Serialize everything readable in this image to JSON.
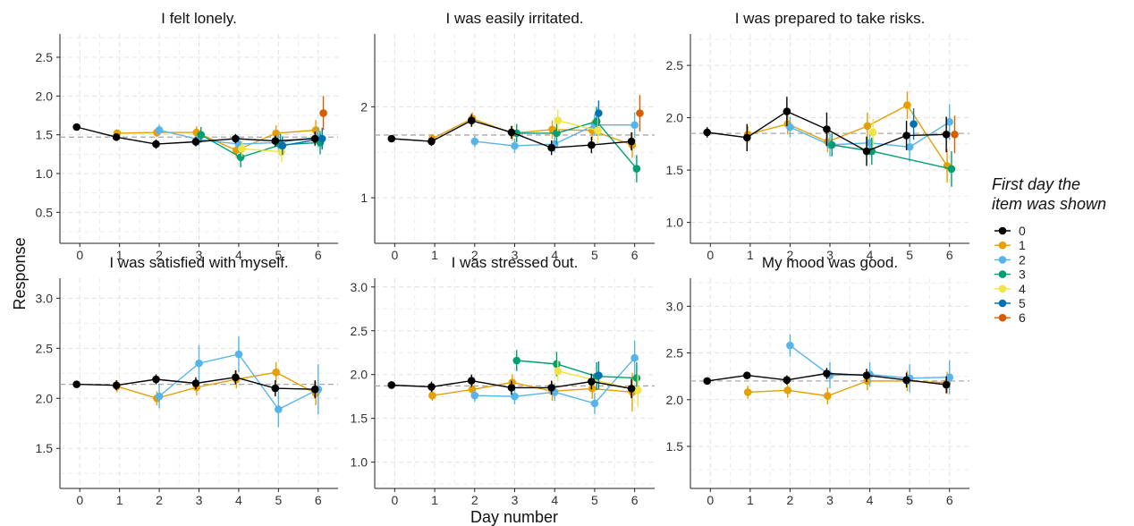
{
  "figure": {
    "ylabel": "Response",
    "xlabel": "Day number",
    "legend_title_line1": "First day the",
    "legend_title_line2": "item was shown"
  },
  "legend": [
    {
      "label": "0",
      "color": "#000000"
    },
    {
      "label": "1",
      "color": "#E69F00"
    },
    {
      "label": "2",
      "color": "#56B4E9"
    },
    {
      "label": "3",
      "color": "#009E73"
    },
    {
      "label": "4",
      "color": "#F0E442"
    },
    {
      "label": "5",
      "color": "#0072B2"
    },
    {
      "label": "6",
      "color": "#D55E00"
    }
  ],
  "chart_data": [
    {
      "type": "line",
      "title": "I felt lonely.",
      "xlabel": "Day number",
      "ylabel": "Response",
      "x_ticks": [
        0,
        1,
        2,
        3,
        4,
        5,
        6
      ],
      "y_ticks": [
        0.5,
        1.0,
        1.5,
        2.0,
        2.5
      ],
      "y_tick_labels": [
        "0.5",
        "1.0",
        "1.5",
        "2.0",
        "2.5"
      ],
      "ylim": [
        0.1,
        2.8
      ],
      "reference_line": 1.47,
      "grid": true,
      "legend_position": "right",
      "series": [
        {
          "name": "0",
          "x": [
            0,
            1,
            2,
            3,
            4,
            5,
            6
          ],
          "y": [
            1.6,
            1.47,
            1.38,
            1.41,
            1.45,
            1.42,
            1.45
          ],
          "err": [
            0.03,
            0.05,
            0.06,
            0.06,
            0.06,
            0.07,
            0.09
          ]
        },
        {
          "name": "1",
          "x": [
            1,
            2,
            3,
            4,
            5,
            6
          ],
          "y": [
            1.52,
            1.53,
            1.53,
            1.3,
            1.52,
            1.56
          ],
          "err": [
            0.05,
            0.06,
            0.08,
            0.1,
            0.1,
            0.13
          ]
        },
        {
          "name": "2",
          "x": [
            2,
            3,
            4,
            5,
            6
          ],
          "y": [
            1.56,
            1.44,
            1.38,
            1.4,
            1.47
          ],
          "err": [
            0.07,
            0.08,
            0.1,
            0.11,
            0.13
          ]
        },
        {
          "name": "3",
          "x": [
            3,
            4,
            5,
            6
          ],
          "y": [
            1.5,
            1.21,
            1.37,
            1.4
          ],
          "err": [
            0.1,
            0.13,
            0.14,
            0.15
          ]
        },
        {
          "name": "4",
          "x": [
            4,
            5
          ],
          "y": [
            1.32,
            1.28
          ],
          "err": [
            0.1,
            0.13
          ]
        },
        {
          "name": "5",
          "x": [
            5,
            6
          ],
          "y": [
            1.36,
            1.45
          ],
          "err": [
            0.12,
            0.14
          ]
        },
        {
          "name": "6",
          "x": [
            6
          ],
          "y": [
            1.78
          ],
          "err": [
            0.22
          ]
        }
      ]
    },
    {
      "type": "line",
      "title": "I was easily irritated.",
      "xlabel": "Day number",
      "ylabel": "Response",
      "x_ticks": [
        0,
        1,
        2,
        3,
        4,
        5,
        6
      ],
      "y_ticks": [
        1,
        2
      ],
      "y_tick_labels": [
        "1",
        "2"
      ],
      "ylim": [
        0.5,
        2.8
      ],
      "reference_line": 1.69,
      "grid": true,
      "legend_position": "right",
      "series": [
        {
          "name": "0",
          "x": [
            0,
            1,
            2,
            3,
            4,
            5,
            6
          ],
          "y": [
            1.65,
            1.62,
            1.85,
            1.72,
            1.55,
            1.58,
            1.62
          ],
          "err": [
            0.03,
            0.05,
            0.07,
            0.07,
            0.08,
            0.09,
            0.1
          ]
        },
        {
          "name": "1",
          "x": [
            1,
            2,
            3,
            4,
            5,
            6
          ],
          "y": [
            1.65,
            1.87,
            1.71,
            1.75,
            1.74,
            1.58
          ],
          "err": [
            0.05,
            0.07,
            0.08,
            0.1,
            0.11,
            0.14
          ]
        },
        {
          "name": "2",
          "x": [
            2,
            3,
            4,
            5,
            6
          ],
          "y": [
            1.62,
            1.57,
            1.59,
            1.8,
            1.8
          ],
          "err": [
            0.06,
            0.08,
            0.09,
            0.12,
            0.14
          ]
        },
        {
          "name": "3",
          "x": [
            3,
            4,
            5,
            6
          ],
          "y": [
            1.71,
            1.71,
            1.84,
            1.32
          ],
          "err": [
            0.1,
            0.12,
            0.16,
            0.15
          ]
        },
        {
          "name": "4",
          "x": [
            4,
            5
          ],
          "y": [
            1.85,
            1.74
          ],
          "err": [
            0.12,
            0.14
          ]
        },
        {
          "name": "5",
          "x": [
            5
          ],
          "y": [
            1.93
          ],
          "err": [
            0.14
          ]
        },
        {
          "name": "6",
          "x": [
            6
          ],
          "y": [
            1.93
          ],
          "err": [
            0.2
          ]
        }
      ]
    },
    {
      "type": "line",
      "title": "I was prepared to take risks.",
      "xlabel": "Day number",
      "ylabel": "Response",
      "x_ticks": [
        0,
        1,
        2,
        3,
        4,
        5,
        6
      ],
      "y_ticks": [
        1.0,
        1.5,
        2.0,
        2.5
      ],
      "y_tick_labels": [
        "1.0",
        "1.5",
        "2.0",
        "2.5"
      ],
      "ylim": [
        0.8,
        2.8
      ],
      "reference_line": 1.85,
      "grid": true,
      "legend_position": "right",
      "series": [
        {
          "name": "0",
          "x": [
            0,
            1,
            2,
            3,
            4,
            5,
            6
          ],
          "y": [
            1.86,
            1.81,
            2.06,
            1.89,
            1.68,
            1.83,
            1.84
          ],
          "err": [
            0.05,
            0.13,
            0.14,
            0.16,
            0.14,
            0.14,
            0.17
          ]
        },
        {
          "name": "1",
          "x": [
            1,
            2,
            3,
            4,
            5,
            6
          ],
          "y": [
            1.84,
            1.94,
            1.77,
            1.92,
            2.12,
            1.54
          ],
          "err": [
            0.08,
            0.1,
            0.1,
            0.13,
            0.13,
            0.16
          ]
        },
        {
          "name": "2",
          "x": [
            2,
            3,
            4,
            5,
            6
          ],
          "y": [
            1.91,
            1.74,
            1.76,
            1.72,
            1.96
          ],
          "err": [
            0.1,
            0.11,
            0.12,
            0.14,
            0.17
          ]
        },
        {
          "name": "3",
          "x": [
            3,
            4,
            6
          ],
          "y": [
            1.74,
            1.68,
            1.51
          ],
          "err": [
            0.11,
            0.13,
            0.17
          ]
        },
        {
          "name": "4",
          "x": [
            4
          ],
          "y": [
            1.86
          ],
          "err": [
            0.13
          ]
        },
        {
          "name": "5",
          "x": [
            5
          ],
          "y": [
            1.94
          ],
          "err": [
            0.15
          ]
        },
        {
          "name": "6",
          "x": [
            6
          ],
          "y": [
            1.84
          ],
          "err": [
            0.18
          ]
        }
      ]
    },
    {
      "type": "line",
      "title": "I was satisfied with myself.",
      "xlabel": "Day number",
      "ylabel": "Response",
      "x_ticks": [
        0,
        1,
        2,
        3,
        4,
        5,
        6
      ],
      "y_ticks": [
        1.5,
        2.0,
        2.5,
        3.0
      ],
      "y_tick_labels": [
        "1.5",
        "2.0",
        "2.5",
        "3.0"
      ],
      "ylim": [
        1.1,
        3.2
      ],
      "reference_line": 2.14,
      "grid": true,
      "legend_position": "right",
      "series": [
        {
          "name": "0",
          "x": [
            0,
            1,
            2,
            3,
            4,
            5,
            6
          ],
          "y": [
            2.14,
            2.13,
            2.19,
            2.15,
            2.21,
            2.1,
            2.09
          ],
          "err": [
            0.03,
            0.05,
            0.05,
            0.06,
            0.07,
            0.08,
            0.09
          ]
        },
        {
          "name": "1",
          "x": [
            1,
            2,
            3,
            4,
            5,
            6
          ],
          "y": [
            2.12,
            2.0,
            2.11,
            2.19,
            2.26,
            2.05
          ],
          "err": [
            0.06,
            0.07,
            0.08,
            0.09,
            0.1,
            0.12
          ]
        },
        {
          "name": "2",
          "x": [
            2,
            3,
            4,
            5,
            6
          ],
          "y": [
            2.02,
            2.35,
            2.44,
            1.89,
            2.09
          ],
          "err": [
            0.12,
            0.18,
            0.18,
            0.18,
            0.25
          ]
        }
      ]
    },
    {
      "type": "line",
      "title": "I was stressed out.",
      "xlabel": "Day number",
      "ylabel": "Response",
      "x_ticks": [
        0,
        1,
        2,
        3,
        4,
        5,
        6
      ],
      "y_ticks": [
        1.0,
        1.5,
        2.0,
        2.5,
        3.0
      ],
      "y_tick_labels": [
        "1.0",
        "1.5",
        "2.0",
        "2.5",
        "3.0"
      ],
      "ylim": [
        0.7,
        3.1
      ],
      "reference_line": 1.87,
      "grid": true,
      "legend_position": "right",
      "series": [
        {
          "name": "0",
          "x": [
            0,
            1,
            2,
            3,
            4,
            5,
            6
          ],
          "y": [
            1.88,
            1.86,
            1.93,
            1.85,
            1.85,
            1.92,
            1.84
          ],
          "err": [
            0.03,
            0.06,
            0.07,
            0.08,
            0.08,
            0.09,
            0.11
          ]
        },
        {
          "name": "1",
          "x": [
            1,
            2,
            3,
            4,
            5,
            6
          ],
          "y": [
            1.76,
            1.83,
            1.91,
            1.81,
            1.84,
            1.8
          ],
          "err": [
            0.06,
            0.08,
            0.09,
            0.11,
            0.12,
            0.22
          ]
        },
        {
          "name": "2",
          "x": [
            2,
            3,
            4,
            5,
            6
          ],
          "y": [
            1.76,
            1.75,
            1.8,
            1.67,
            2.19
          ],
          "err": [
            0.07,
            0.09,
            0.1,
            0.12,
            0.2
          ]
        },
        {
          "name": "3",
          "x": [
            3,
            4,
            5,
            6
          ],
          "y": [
            2.16,
            2.12,
            1.98,
            1.96
          ],
          "err": [
            0.12,
            0.14,
            0.16,
            0.18
          ]
        },
        {
          "name": "4",
          "x": [
            4,
            6
          ],
          "y": [
            2.04,
            1.82
          ],
          "err": [
            0.12,
            0.18
          ]
        },
        {
          "name": "5",
          "x": [
            5
          ],
          "y": [
            1.99
          ],
          "err": [
            0.16
          ]
        }
      ]
    },
    {
      "type": "line",
      "title": "My mood was good.",
      "xlabel": "Day number",
      "ylabel": "Response",
      "x_ticks": [
        0,
        1,
        2,
        3,
        4,
        5,
        6
      ],
      "y_ticks": [
        1.5,
        2.0,
        2.5,
        3.0
      ],
      "y_tick_labels": [
        "1.5",
        "2.0",
        "2.5",
        "3.0"
      ],
      "ylim": [
        1.05,
        3.3
      ],
      "reference_line": 2.2,
      "grid": true,
      "legend_position": "right",
      "series": [
        {
          "name": "0",
          "x": [
            0,
            1,
            2,
            3,
            4,
            5,
            6
          ],
          "y": [
            2.2,
            2.26,
            2.21,
            2.28,
            2.26,
            2.21,
            2.16
          ],
          "err": [
            0.03,
            0.04,
            0.05,
            0.06,
            0.07,
            0.08,
            0.09
          ]
        },
        {
          "name": "1",
          "x": [
            1,
            2,
            3,
            4,
            5,
            6
          ],
          "y": [
            2.08,
            2.1,
            2.04,
            2.2,
            2.2,
            2.18
          ],
          "err": [
            0.07,
            0.08,
            0.09,
            0.1,
            0.11,
            0.12
          ]
        },
        {
          "name": "2",
          "x": [
            2,
            3,
            4,
            5,
            6
          ],
          "y": [
            2.58,
            2.26,
            2.27,
            2.23,
            2.24
          ],
          "err": [
            0.12,
            0.14,
            0.13,
            0.15,
            0.18
          ]
        }
      ]
    }
  ]
}
